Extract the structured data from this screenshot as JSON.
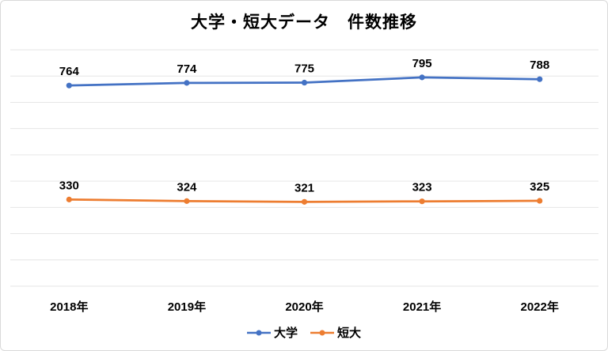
{
  "chart_data": {
    "type": "line",
    "title": "大学・短大データ　件数推移",
    "categories": [
      "2018年",
      "2019年",
      "2020年",
      "2021年",
      "2022年"
    ],
    "series": [
      {
        "name": "大学",
        "color": "#4472C4",
        "values": [
          764,
          774,
          775,
          795,
          788
        ]
      },
      {
        "name": "短大",
        "color": "#ED7D31",
        "values": [
          330,
          324,
          321,
          323,
          325
        ]
      }
    ],
    "xlabel": "",
    "ylabel": "",
    "ylim": [
      0,
      900
    ],
    "gridline_interval": 100,
    "grid": true,
    "data_labels": true,
    "legend_position": "bottom",
    "colors": {
      "background": "#FFFFFF",
      "gridline": "#E6E6E6",
      "border": "#D9D9D9",
      "text": "#000000"
    }
  }
}
